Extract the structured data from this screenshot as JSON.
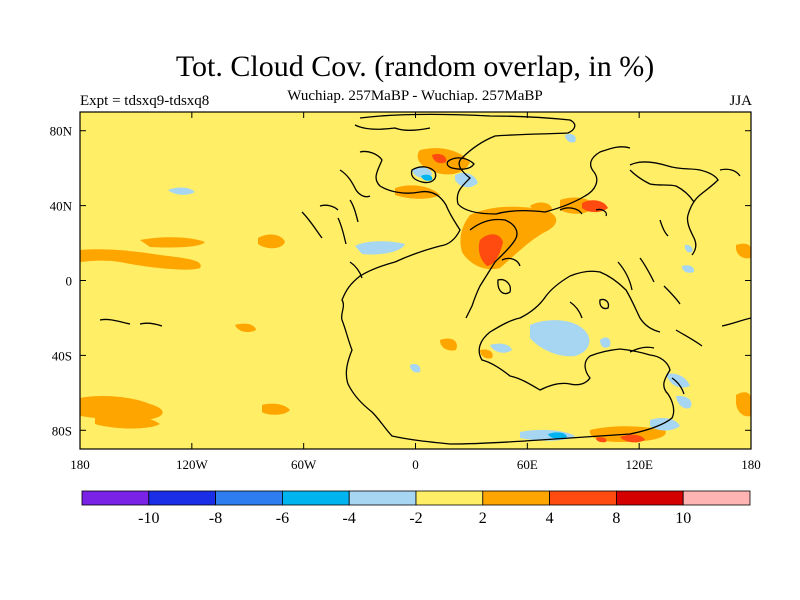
{
  "title": "Tot. Cloud Cov. (random overlap, in %)",
  "subtitle": "Wuchiap. 257MaBP - Wuchiap. 257MaBP",
  "expt_label": "Expt = tdsxq9-tdsxq8",
  "season": "JJA",
  "axes": {
    "x_ticks": [
      {
        "value": -180,
        "label": "180"
      },
      {
        "value": -120,
        "label": "120W"
      },
      {
        "value": -60,
        "label": "60W"
      },
      {
        "value": 0,
        "label": "0"
      },
      {
        "value": 60,
        "label": "60E"
      },
      {
        "value": 120,
        "label": "120E"
      },
      {
        "value": 180,
        "label": "180"
      }
    ],
    "y_ticks": [
      {
        "value": 80,
        "label": "80N"
      },
      {
        "value": 40,
        "label": "40N"
      },
      {
        "value": 0,
        "label": "0"
      },
      {
        "value": -40,
        "label": "40S"
      },
      {
        "value": -80,
        "label": "80S"
      }
    ],
    "lon_range": [
      -180,
      180
    ],
    "lat_range": [
      -90,
      90
    ]
  },
  "colorbar": {
    "colors": [
      "#7a22e6",
      "#1a2ee8",
      "#2e7df0",
      "#00b4f0",
      "#a6d6f2",
      "#ffee66",
      "#ffa500",
      "#ff4a10",
      "#d40000",
      "#ffb4b4"
    ],
    "labels": [
      "-10",
      "-8",
      "-6",
      "-4",
      "-2",
      "2",
      "4",
      "8",
      "10"
    ]
  },
  "chart_data": {
    "type": "heatmap",
    "title": "Tot. Cloud Cov. (random overlap, in %)",
    "field": "difference tdsxq9 - tdsxq8, JJA",
    "levels": [
      -10,
      -8,
      -6,
      -4,
      -2,
      2,
      4,
      8,
      10
    ],
    "background_level": "-2 to 2",
    "regions": [
      {
        "level": "2 to 4",
        "lon": [
          -180,
          -160
        ],
        "lat": [
          12,
          18
        ]
      },
      {
        "level": "2 to 4",
        "lon": [
          -170,
          -145
        ],
        "lat": [
          4,
          11
        ]
      },
      {
        "level": "2 to 4",
        "lon": [
          -125,
          -115
        ],
        "lat": [
          14,
          20
        ]
      },
      {
        "level": "2 to 4",
        "lon": [
          -100,
          -95
        ],
        "lat": [
          37,
          40
        ]
      },
      {
        "level": "2 to 4",
        "lon": [
          -175,
          -140
        ],
        "lat": [
          -72,
          -78
        ]
      },
      {
        "level": "2 to 4",
        "lon": [
          -165,
          -140
        ],
        "lat": [
          -80,
          -85
        ]
      },
      {
        "level": "2 to 4",
        "lon": [
          -107,
          -95
        ],
        "lat": [
          -70,
          -75
        ]
      },
      {
        "level": "2 to 4",
        "lon": [
          -100,
          -90
        ],
        "lat": [
          -28,
          -32
        ]
      },
      {
        "level": "2 to 4",
        "lon": [
          -40,
          -35
        ],
        "lat": [
          -45,
          -55
        ]
      },
      {
        "level": "2 to 4",
        "lon": [
          0,
          30
        ],
        "lat": [
          60,
          70
        ]
      },
      {
        "level": "2 to 4",
        "lon": [
          10,
          30
        ],
        "lat": [
          40,
          48
        ]
      },
      {
        "level": "2 to 4",
        "lon": [
          30,
          60
        ],
        "lat": [
          10,
          38
        ]
      },
      {
        "level": "2 to 4",
        "lon": [
          95,
          107
        ],
        "lat": [
          33,
          40
        ]
      },
      {
        "level": "2 to 4",
        "lon": [
          105,
          130
        ],
        "lat": [
          -75,
          -80
        ]
      },
      {
        "level": "2 to 4",
        "lon": [
          170,
          180
        ],
        "lat": [
          -65,
          -75
        ]
      },
      {
        "level": "2 to 4",
        "lon": [
          170,
          180
        ],
        "lat": [
          15,
          20
        ]
      },
      {
        "level": "4 to 8",
        "lon": [
          30,
          42
        ],
        "lat": [
          12,
          28
        ]
      },
      {
        "level": "4 to 8",
        "lon": [
          95,
          105
        ],
        "lat": [
          38,
          42
        ]
      },
      {
        "level": "4 to 8",
        "lon": [
          115,
          125
        ],
        "lat": [
          -85,
          -88
        ]
      },
      {
        "level": "-4 to -2",
        "lon": [
          -135,
          -125
        ],
        "lat": [
          45,
          47
        ]
      },
      {
        "level": "-4 to -2",
        "lon": [
          -10,
          0
        ],
        "lat": [
          15,
          20
        ]
      },
      {
        "level": "-4 to -2",
        "lon": [
          20,
          27
        ],
        "lat": [
          50,
          57
        ]
      },
      {
        "level": "-4 to -2",
        "lon": [
          60,
          80
        ],
        "lat": [
          -25,
          -35
        ]
      },
      {
        "level": "-4 to -2",
        "lon": [
          35,
          50
        ],
        "lat": [
          -30,
          -40
        ]
      },
      {
        "level": "-4 to -2",
        "lon": [
          100,
          110
        ],
        "lat": [
          -30,
          -40
        ]
      },
      {
        "level": "-4 to -2",
        "lon": [
          118,
          125
        ],
        "lat": [
          -48,
          -58
        ]
      },
      {
        "level": "-4 to -2",
        "lon": [
          135,
          145
        ],
        "lat": [
          -68,
          -72
        ]
      },
      {
        "level": "-4 to -2",
        "lon": [
          120,
          150
        ],
        "lat": [
          -80,
          -86
        ]
      },
      {
        "level": "-4 to -2",
        "lon": [
          67,
          78
        ],
        "lat": [
          -83,
          -86
        ]
      },
      {
        "level": "-6 to -4",
        "lon": [
          0,
          5
        ],
        "lat": [
          56,
          58
        ]
      },
      {
        "level": "-6 to -4",
        "lon": [
          70,
          75
        ],
        "lat": [
          -83,
          -86
        ]
      }
    ]
  }
}
